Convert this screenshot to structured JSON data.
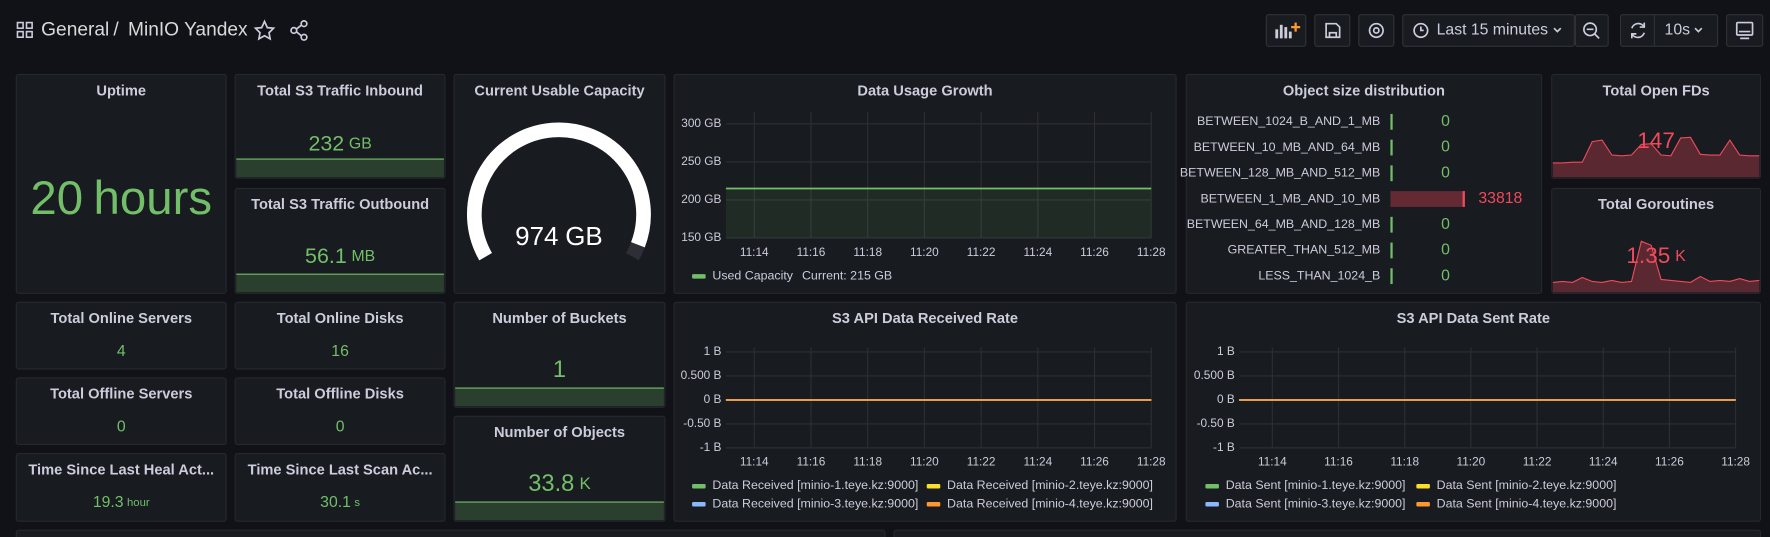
{
  "header": {
    "breadcrumb_folder": "General",
    "breadcrumb_separator": "/",
    "dashboard_title": "MinIO Yandex",
    "time_range": "Last 15 minutes",
    "refresh_interval": "10s"
  },
  "stats": [
    {
      "title": "Uptime",
      "value": 20,
      "unit": "hours",
      "color": "#73bf69"
    },
    {
      "title": "Total S3 Traffic Inbound",
      "value": 232,
      "unit": "GB",
      "color": "#73bf69"
    },
    {
      "title": "Total S3 Traffic Outbound",
      "value": 56.1,
      "unit": "MB",
      "color": "#73bf69"
    },
    {
      "title": "Total Online Servers",
      "value": 4,
      "color": "#73bf69"
    },
    {
      "title": "Total Online Disks",
      "value": 16,
      "color": "#73bf69"
    },
    {
      "title": "Total Offline Servers",
      "value": 0,
      "color": "#73bf69"
    },
    {
      "title": "Total Offline Disks",
      "value": 0,
      "color": "#73bf69"
    },
    {
      "title": "Time Since Last Heal Act...",
      "value": 19.3,
      "unit": "hour",
      "color": "#73bf69"
    },
    {
      "title": "Time Since Last Scan Ac...",
      "value": 30.1,
      "unit": "s",
      "color": "#73bf69"
    },
    {
      "title": "Number of Buckets",
      "value": 1,
      "color": "#73bf69"
    },
    {
      "title": "Number of Objects",
      "value": 33.8,
      "unit": "K",
      "color": "#73bf69"
    },
    {
      "title": "Total Open FDs",
      "value": 147,
      "color": "#f2495c",
      "spark": [
        120,
        120,
        121,
        121,
        150,
        152,
        131,
        130,
        131,
        146,
        147,
        131,
        130,
        155,
        156,
        132,
        131,
        131,
        152,
        131,
        130,
        130
      ],
      "spark_ylim": [
        100,
        165
      ]
    },
    {
      "title": "Total Goroutines",
      "value": 1.35,
      "unit": "K",
      "color": "#f2495c",
      "spark": [
        1.2,
        1.21,
        1.2,
        1.25,
        1.21,
        1.2,
        1.22,
        1.2,
        1.21,
        1.62,
        1.58,
        1.23,
        1.22,
        1.21,
        1.2,
        1.26,
        1.21,
        1.22,
        1.21,
        1.24,
        1.21,
        1.22
      ],
      "spark_ylim": [
        1.1,
        1.7
      ]
    }
  ],
  "gauge": {
    "title": "Current Usable Capacity",
    "value": 974,
    "unit": "GB"
  },
  "bar_gauge": {
    "title": "Object size distribution",
    "rows": [
      {
        "label": "BETWEEN_1024_B_AND_1_MB",
        "value": 0,
        "color": "#73bf69"
      },
      {
        "label": "BETWEEN_10_MB_AND_64_MB",
        "value": 0,
        "color": "#73bf69"
      },
      {
        "label": "BETWEEN_128_MB_AND_512_MB",
        "value": 0,
        "color": "#73bf69"
      },
      {
        "label": "BETWEEN_1_MB_AND_10_MB",
        "value": 33818,
        "color": "#f2495c"
      },
      {
        "label": "BETWEEN_64_MB_AND_128_MB",
        "value": 0,
        "color": "#73bf69"
      },
      {
        "label": "GREATER_THAN_512_MB",
        "value": 0,
        "color": "#73bf69"
      },
      {
        "label": "LESS_THAN_1024_B",
        "value": 0,
        "color": "#73bf69"
      }
    ]
  },
  "charts": [
    {
      "type": "line",
      "title": "Data Usage Growth",
      "x": [
        null,
        "11:14",
        null,
        "11:16",
        null,
        "11:18",
        null,
        "11:20",
        null,
        "11:22",
        null,
        "11:24",
        null,
        "11:26",
        null,
        "11:28"
      ],
      "ylim": [
        150,
        310
      ],
      "yticks": [
        {
          "value": 150,
          "label": "150 GB"
        },
        {
          "value": 200,
          "label": "200 GB"
        },
        {
          "value": 250,
          "label": "250 GB"
        },
        {
          "value": 300,
          "label": "300 GB"
        }
      ],
      "fill": true,
      "series": [
        {
          "name": "Used Capacity",
          "legend_value": "Current: 215 GB",
          "color": "#73bf69",
          "values": [
            215,
            215,
            215,
            215,
            215,
            215,
            215,
            215,
            215,
            215,
            215,
            215,
            215,
            215,
            215,
            215
          ]
        }
      ]
    },
    {
      "type": "line",
      "title": "S3 API Data Received Rate",
      "x": [
        null,
        "11:14",
        null,
        "11:16",
        null,
        "11:18",
        null,
        "11:20",
        null,
        "11:22",
        null,
        "11:24",
        null,
        "11:26",
        null,
        "11:28"
      ],
      "ylim": [
        -1,
        1
      ],
      "yticks": [
        {
          "value": -1,
          "label": "-1 B"
        },
        {
          "value": -0.5,
          "label": "-0.50 B"
        },
        {
          "value": 0,
          "label": "0 B"
        },
        {
          "value": 0.5,
          "label": "0.500 B"
        },
        {
          "value": 1,
          "label": "1 B"
        }
      ],
      "fill": false,
      "series": [
        {
          "name": "Data Received [minio-1.teye.kz:9000]",
          "color": "#73bf69",
          "values": [
            0,
            0,
            0,
            0,
            0,
            0,
            0,
            0,
            0,
            0,
            0,
            0,
            0,
            0,
            0,
            0
          ]
        },
        {
          "name": "Data Received [minio-2.teye.kz:9000]",
          "color": "#fade2a",
          "values": [
            0,
            0,
            0,
            0,
            0,
            0,
            0,
            0,
            0,
            0,
            0,
            0,
            0,
            0,
            0,
            0
          ]
        },
        {
          "name": "Data Received [minio-3.teye.kz:9000]",
          "color": "#8ab8ff",
          "values": [
            0,
            0,
            0,
            0,
            0,
            0,
            0,
            0,
            0,
            0,
            0,
            0,
            0,
            0,
            0,
            0
          ]
        },
        {
          "name": "Data Received [minio-4.teye.kz:9000]",
          "color": "#ff9830",
          "values": [
            0,
            0,
            0,
            0,
            0,
            0,
            0,
            0,
            0,
            0,
            0,
            0,
            0,
            0,
            0,
            0
          ]
        }
      ]
    },
    {
      "type": "line",
      "title": "S3 API Data Sent Rate",
      "x": [
        null,
        "11:14",
        null,
        "11:16",
        null,
        "11:18",
        null,
        "11:20",
        null,
        "11:22",
        null,
        "11:24",
        null,
        "11:26",
        null,
        "11:28"
      ],
      "ylim": [
        -1,
        1
      ],
      "yticks": [
        {
          "value": -1,
          "label": "-1 B"
        },
        {
          "value": -0.5,
          "label": "-0.50 B"
        },
        {
          "value": 0,
          "label": "0 B"
        },
        {
          "value": 0.5,
          "label": "0.500 B"
        },
        {
          "value": 1,
          "label": "1 B"
        }
      ],
      "fill": false,
      "series": [
        {
          "name": "Data Sent [minio-1.teye.kz:9000]",
          "color": "#73bf69",
          "values": [
            0,
            0,
            0,
            0,
            0,
            0,
            0,
            0,
            0,
            0,
            0,
            0,
            0,
            0,
            0,
            0
          ]
        },
        {
          "name": "Data Sent [minio-2.teye.kz:9000]",
          "color": "#fade2a",
          "values": [
            0,
            0,
            0,
            0,
            0,
            0,
            0,
            0,
            0,
            0,
            0,
            0,
            0,
            0,
            0,
            0
          ]
        },
        {
          "name": "Data Sent [minio-3.teye.kz:9000]",
          "color": "#8ab8ff",
          "values": [
            0,
            0,
            0,
            0,
            0,
            0,
            0,
            0,
            0,
            0,
            0,
            0,
            0,
            0,
            0,
            0
          ]
        },
        {
          "name": "Data Sent [minio-4.teye.kz:9000]",
          "color": "#ff9830",
          "values": [
            0,
            0,
            0,
            0,
            0,
            0,
            0,
            0,
            0,
            0,
            0,
            0,
            0,
            0,
            0,
            0
          ]
        }
      ]
    }
  ]
}
